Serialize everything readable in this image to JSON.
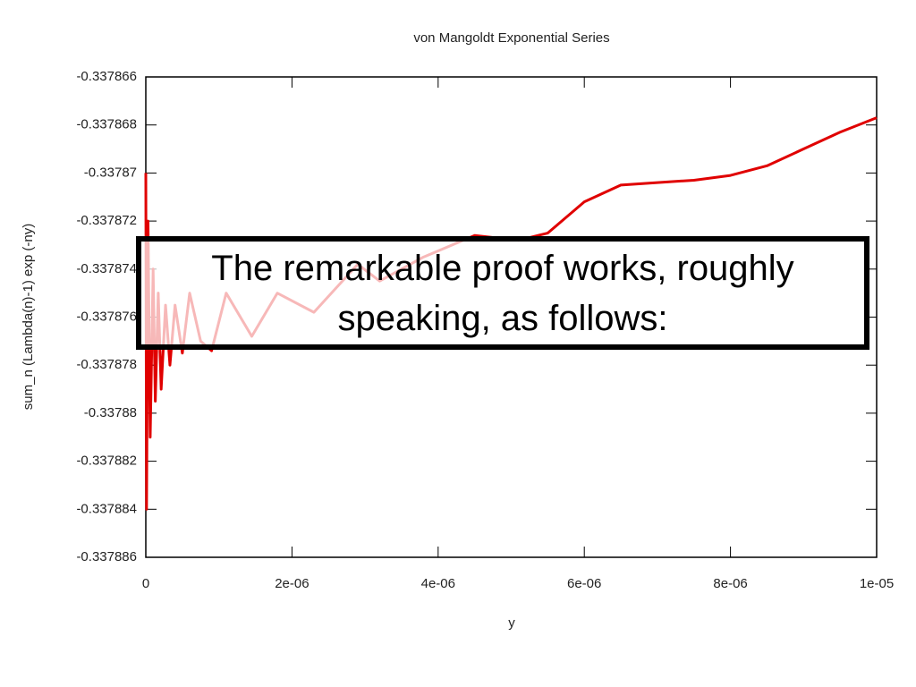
{
  "chart_data": {
    "type": "line",
    "title": "von Mangoldt Exponential Series",
    "x_label": "y",
    "y_label": "sum_n (Lambda(n)-1) exp (-ny)",
    "annotation": "The remarkable proof works, roughly speaking, as follows:",
    "color": "#e00000",
    "x": [
      0,
      1e-08,
      3e-08,
      6e-08,
      1e-07,
      1.3e-07,
      1.7e-07,
      2.1e-07,
      2.7e-07,
      3.3e-07,
      4e-07,
      5e-07,
      6e-07,
      7.5e-07,
      9e-07,
      1.1e-06,
      1.45e-06,
      1.8e-06,
      2.3e-06,
      2.9e-06,
      3.2e-06,
      3.8e-06,
      4.5e-06,
      5.1e-06,
      5.5e-06,
      6e-06,
      6.5e-06,
      7e-06,
      7.5e-06,
      8e-06,
      8.5e-06,
      9e-06,
      9.5e-06,
      1e-05
    ],
    "values": [
      -0.33787,
      -0.337884,
      -0.337872,
      -0.337881,
      -0.337874,
      -0.3378795,
      -0.337875,
      -0.337879,
      -0.3378755,
      -0.337878,
      -0.3378755,
      -0.3378775,
      -0.337875,
      -0.337877,
      -0.3378774,
      -0.337875,
      -0.3378768,
      -0.337875,
      -0.3378758,
      -0.3378738,
      -0.3378745,
      -0.3378735,
      -0.3378726,
      -0.3378728,
      -0.3378725,
      -0.3378712,
      -0.3378705,
      -0.3378704,
      -0.3378703,
      -0.3378701,
      -0.3378697,
      -0.337869,
      -0.3378683,
      -0.3378677
    ],
    "xlim": [
      0,
      1e-05
    ],
    "xticks": [
      0,
      {
        "value": 2e-06,
        "label": "2e-06"
      },
      {
        "value": 4e-06,
        "label": "4e-06"
      },
      {
        "value": 6e-06,
        "label": "6e-06"
      },
      {
        "value": 8e-06,
        "label": "8e-06"
      },
      {
        "value": 1e-05,
        "label": "1e-05"
      }
    ],
    "ylim": [
      -0.337886,
      -0.337866
    ],
    "yticks": [
      -0.337866,
      -0.337868,
      -0.33787,
      -0.337872,
      -0.337874,
      -0.337876,
      -0.337878,
      -0.33788,
      -0.337882,
      -0.337884,
      -0.337886
    ]
  }
}
